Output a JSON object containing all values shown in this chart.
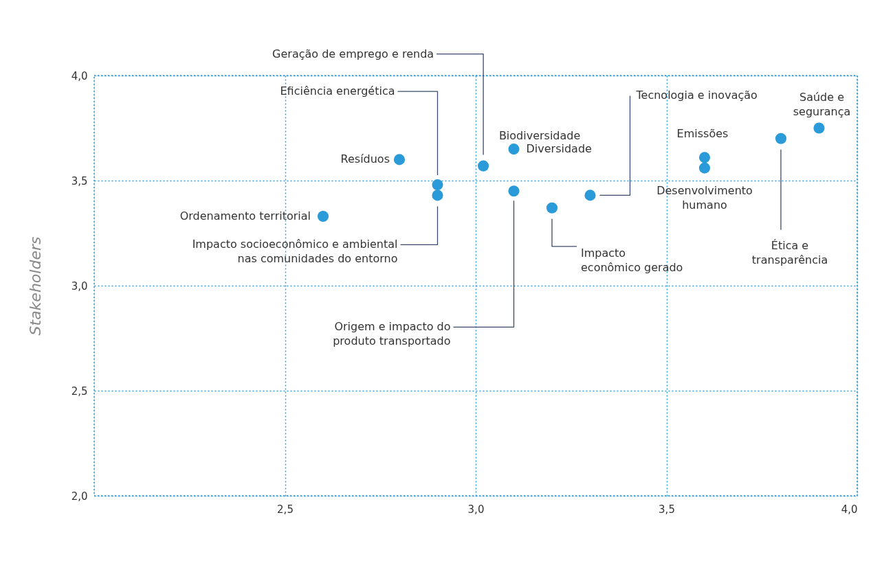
{
  "chart_data": {
    "type": "scatter",
    "ylabel": "Stakeholders",
    "x": [
      2.8,
      2.6,
      2.9,
      2.9,
      3.02,
      3.1,
      3.1,
      3.2,
      3.3,
      3.6,
      3.6,
      3.8,
      3.9
    ],
    "values": [
      3.6,
      3.33,
      3.48,
      3.43,
      3.57,
      3.65,
      3.45,
      3.37,
      3.43,
      3.61,
      3.56,
      3.7,
      3.75
    ],
    "color": "#2b9ad8",
    "marker": "circle",
    "grid": true,
    "xlim": [
      2.0,
      4.0
    ],
    "xticks": [
      {
        "value": 2.5,
        "label": "2,5"
      },
      {
        "value": 3.0,
        "label": "3,0"
      },
      {
        "value": 3.5,
        "label": "3,5"
      },
      {
        "value": 4.0,
        "label": "4,0"
      }
    ],
    "ylim": [
      2.0,
      4.0
    ],
    "yticks": [
      {
        "value": 2.0,
        "label": "2,0"
      },
      {
        "value": 2.5,
        "label": "2,5"
      },
      {
        "value": 3.0,
        "label": "3,0"
      },
      {
        "value": 3.5,
        "label": "3,5"
      },
      {
        "value": 4.0,
        "label": "4,0"
      }
    ],
    "annotations": [
      {
        "text": "Resíduos",
        "x": 2.8,
        "y": 3.6
      },
      {
        "text": "Ordenamento territorial",
        "x": 2.6,
        "y": 3.33
      },
      "Eficiência energética",
      "Impacto socioeconômico e ambiental\nnas comunidades do entorno",
      "Geração de emprego e renda",
      {
        "text": "Biodiversidade",
        "x": 3.02,
        "y": 3.57
      },
      {
        "text": "Diversidade",
        "x": 3.1,
        "y": 3.65
      },
      "Origem e impacto do\nproduto transportado",
      "Impacto\neconômico gerado",
      "Tecnologia e inovação",
      {
        "text": "Emissões",
        "x": 3.6,
        "y": 3.61
      },
      {
        "text": "Desenvolvimento\nhumano",
        "x": 3.6,
        "y": 3.56
      },
      "Ética e\ntransparência",
      {
        "text": "Saúde e\nsegurança",
        "x": 3.9,
        "y": 3.75
      }
    ]
  }
}
